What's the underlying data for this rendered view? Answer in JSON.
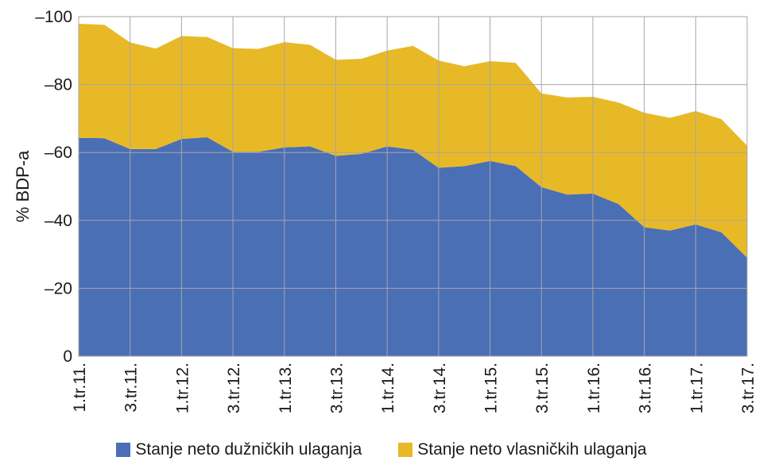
{
  "chart_data": {
    "type": "area",
    "stacked": true,
    "ylabel": "% BDP-a",
    "ylim": [
      -100,
      0
    ],
    "yticks": [
      0,
      -20,
      -40,
      -60,
      -80,
      -100
    ],
    "ytick_labels": [
      "0",
      "–20",
      "–40",
      "–60",
      "–80",
      "–100"
    ],
    "y_axis_reversed": true,
    "grid": true,
    "legend_position": "bottom",
    "x": [
      "1.tr.11.",
      "2.tr.11.",
      "3.tr.11.",
      "4.tr.11.",
      "1.tr.12.",
      "2.tr.12.",
      "3.tr.12.",
      "4.tr.12.",
      "1.tr.13.",
      "2.tr.13.",
      "3.tr.13.",
      "4.tr.13.",
      "1.tr.14.",
      "2.tr.14.",
      "3.tr.14.",
      "4.tr.14.",
      "1.tr.15.",
      "2.tr.15.",
      "3.tr.15.",
      "4.tr.15.",
      "1.tr.16.",
      "2.tr.16.",
      "3.tr.16.",
      "4.tr.16.",
      "1.tr.17.",
      "2.tr.17.",
      "3.tr.17."
    ],
    "x_tick_labels": [
      "1.tr.11.",
      "3.tr.11.",
      "1.tr.12.",
      "3.tr.12.",
      "1.tr.13.",
      "3.tr.13.",
      "1.tr.14.",
      "3.tr.14.",
      "1.tr.15.",
      "3.tr.15.",
      "1.tr.16.",
      "3.tr.16.",
      "1.tr.17.",
      "3.tr.17."
    ],
    "series": [
      {
        "name": "Stanje neto dužničkih ulaganja",
        "color": "#4a6fb5",
        "values": [
          -64.3,
          -64.2,
          -61.0,
          -61.0,
          -64.0,
          -64.5,
          -60.2,
          -60.2,
          -61.5,
          -61.8,
          -59.0,
          -59.6,
          -61.8,
          -60.8,
          -55.5,
          -56.0,
          -57.5,
          -56.0,
          -49.8,
          -47.6,
          -47.9,
          -44.8,
          -38.0,
          -37.0,
          -38.8,
          -36.5,
          -29.0
        ]
      },
      {
        "name": "Stanje neto vlasničkih ulaganja",
        "color": "#e8b927",
        "values": [
          -33.6,
          -33.4,
          -31.4,
          -29.6,
          -30.3,
          -29.5,
          -30.5,
          -30.3,
          -31.0,
          -29.9,
          -28.3,
          -28.0,
          -28.2,
          -30.6,
          -31.6,
          -29.4,
          -29.4,
          -30.4,
          -27.6,
          -28.6,
          -28.5,
          -29.9,
          -33.7,
          -33.2,
          -33.4,
          -33.3,
          -33.0
        ]
      }
    ]
  }
}
